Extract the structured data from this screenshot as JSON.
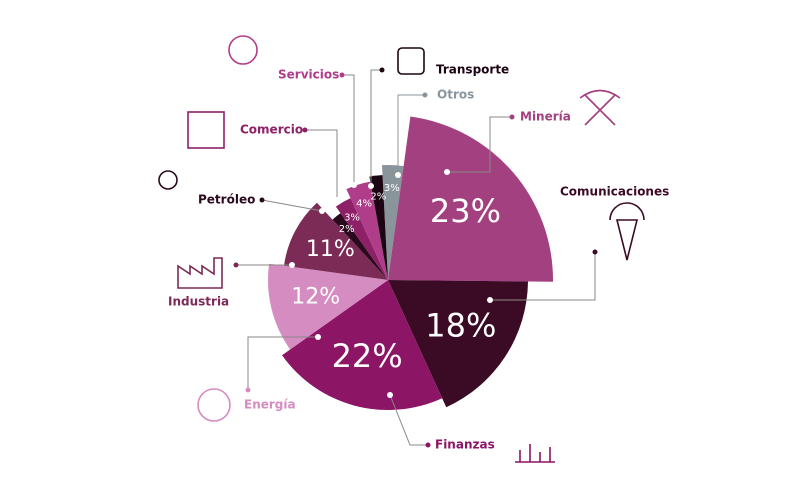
{
  "chart_data": {
    "type": "pie",
    "categories": [
      "Otros",
      "Minería",
      "Comunicaciones",
      "Finanzas",
      "Energía",
      "Industria",
      "Petróleo",
      "Comercio",
      "Servicios",
      "Transporte"
    ],
    "values": [
      3,
      23,
      18,
      22,
      12,
      11,
      2,
      3,
      4,
      2
    ],
    "value_labels": [
      "3%",
      "23%",
      "18%",
      "22%",
      "12%",
      "11%",
      "2%",
      "3%",
      "4%",
      "2%"
    ],
    "colors": [
      "#8a959b",
      "#a3407f",
      "#3b0b25",
      "#8c1565",
      "#d58cc1",
      "#7b2b56",
      "#2b0a1d",
      "#8d2067",
      "#b03d8a",
      "#1c0513"
    ]
  }
}
